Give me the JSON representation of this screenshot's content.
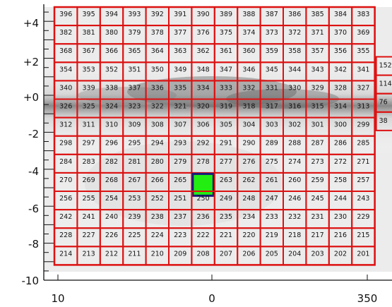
{
  "y_ticks": [
    "+4",
    "+2",
    "+0",
    "-2",
    "-4",
    "-6",
    "-8",
    "-10"
  ],
  "x_ticks": [
    "10",
    "0",
    "350"
  ],
  "grid": {
    "rows": 14,
    "cols": 14,
    "max_id": 396,
    "min_id": 201,
    "highlighted_id": 264,
    "blank_ids": [
      264
    ]
  },
  "partial_column_ids": [
    "152",
    "114",
    "76",
    "38"
  ],
  "colors": {
    "cell_border": "#dd1111",
    "highlight_fill": "#22ee11",
    "highlight_border": "#1a1a7a",
    "axis": "#111111",
    "background_dark": "#555555",
    "background_light": "#e8e8e8"
  }
}
